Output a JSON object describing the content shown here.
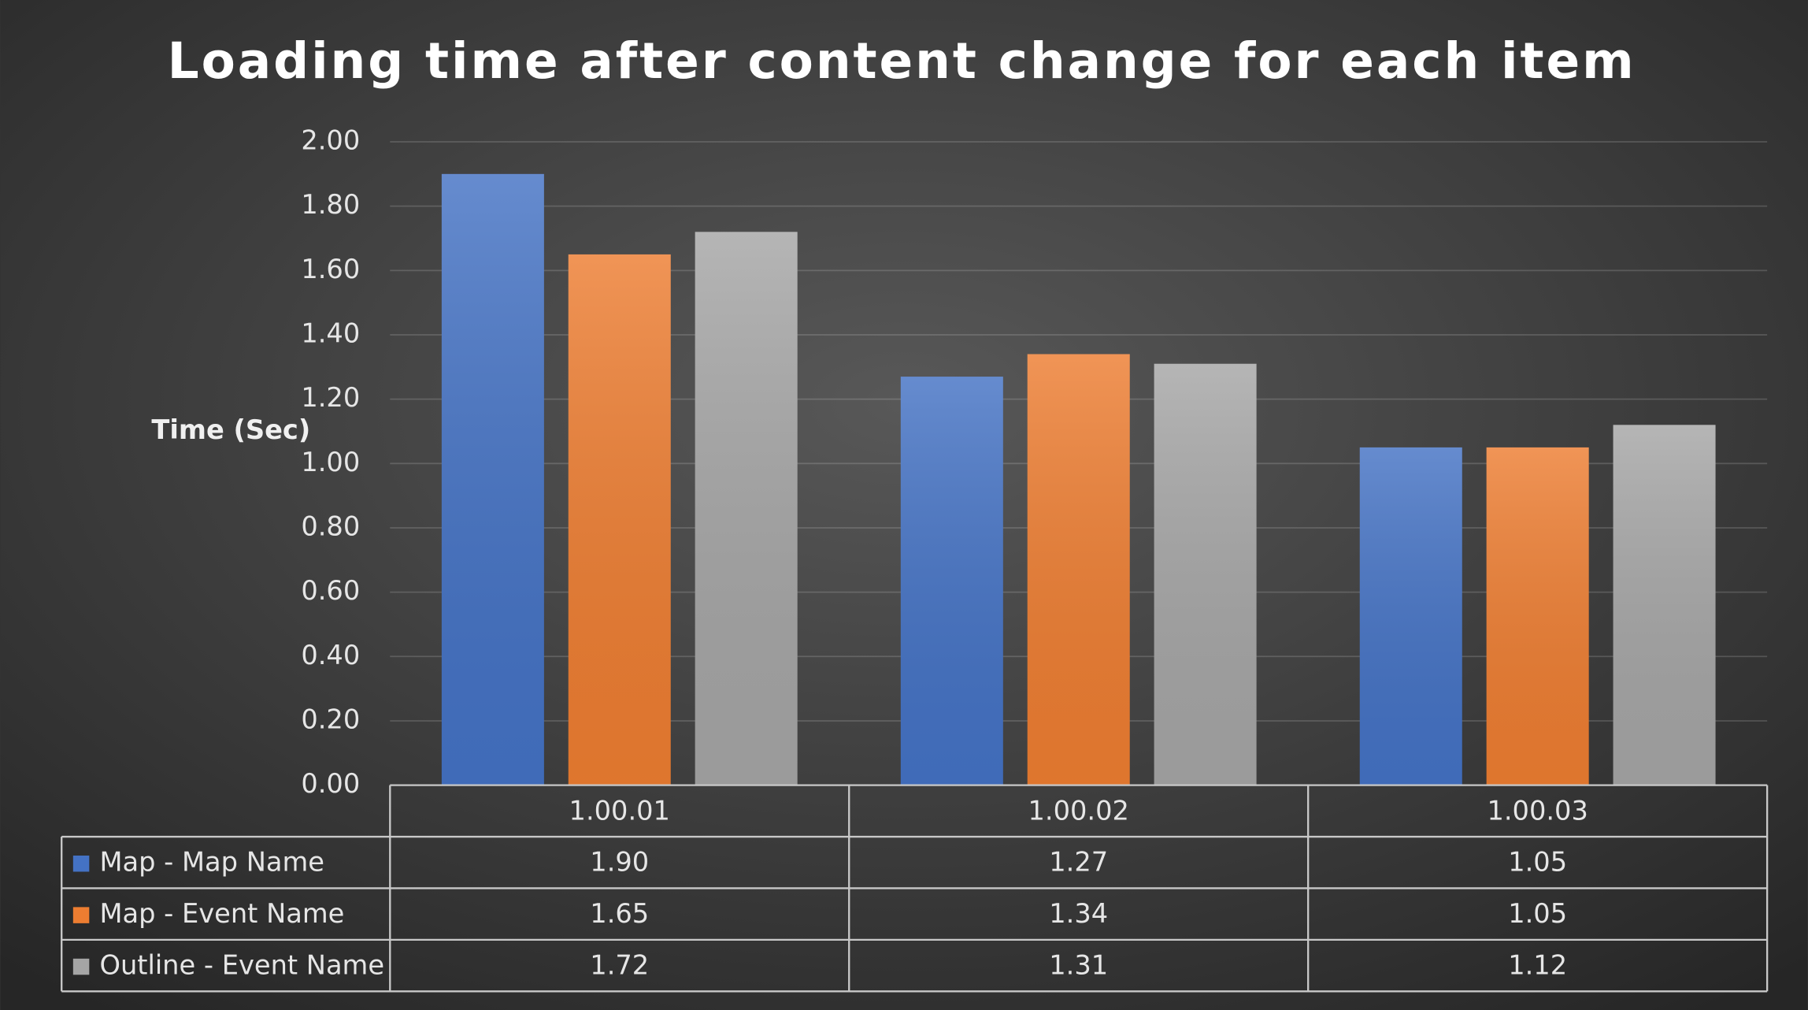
{
  "chart_data": {
    "type": "bar",
    "title": "Loading time after content change for each item",
    "y_label": "Time (Sec)",
    "categories": [
      "1.00.01",
      "1.00.02",
      "1.00.03"
    ],
    "series": [
      {
        "name": "Map - Map Name",
        "color": "#4472c4",
        "values": [
          1.9,
          1.27,
          1.05
        ],
        "value_labels": [
          "1.90",
          "1.27",
          "1.05"
        ]
      },
      {
        "name": "Map - Event Name",
        "color": "#ed7d31",
        "values": [
          1.65,
          1.34,
          1.05
        ],
        "value_labels": [
          "1.65",
          "1.34",
          "1.05"
        ]
      },
      {
        "name": "Outline - Event Name",
        "color": "#a5a5a5",
        "values": [
          1.72,
          1.31,
          1.12
        ],
        "value_labels": [
          "1.72",
          "1.31",
          "1.12"
        ]
      }
    ],
    "ylim": [
      0,
      2
    ],
    "yticks": [
      {
        "value": 0,
        "label": "0.00"
      },
      {
        "value": 0.2,
        "label": "0.20"
      },
      {
        "value": 0.4,
        "label": "0.40"
      },
      {
        "value": 0.6,
        "label": "0.60"
      },
      {
        "value": 0.8,
        "label": "0.80"
      },
      {
        "value": 1,
        "label": "1.00"
      },
      {
        "value": 1.2,
        "label": "1.20"
      },
      {
        "value": 1.4,
        "label": "1.40"
      },
      {
        "value": 1.6,
        "label": "1.60"
      },
      {
        "value": 1.8,
        "label": "1.80"
      },
      {
        "value": 2,
        "label": "2.00"
      }
    ],
    "grid": true,
    "legend": "data-table"
  }
}
